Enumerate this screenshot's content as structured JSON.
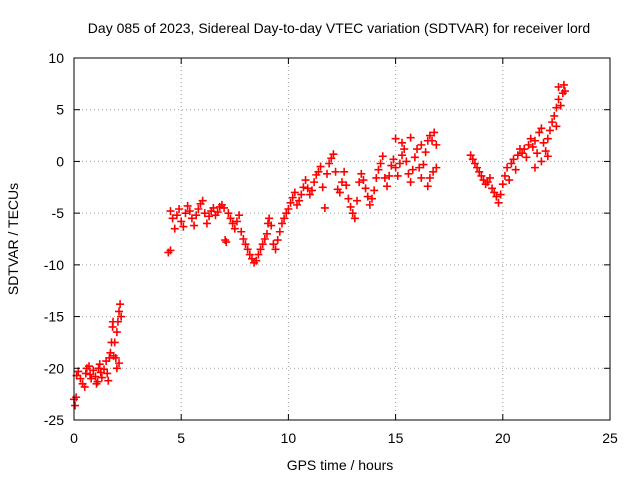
{
  "chart_data": {
    "type": "scatter",
    "title": "Day 085 of 2023, Sidereal Day-to-day VTEC variation (SDTVAR) for receiver lord",
    "xlabel": "GPS time / hours",
    "ylabel": "SDTVAR / TECUs",
    "xlim": [
      0,
      25
    ],
    "ylim": [
      -25,
      10
    ],
    "xticks": [
      0,
      5,
      10,
      15,
      20,
      25
    ],
    "yticks": [
      -25,
      -20,
      -15,
      -10,
      -5,
      0,
      5,
      10
    ],
    "grid": true,
    "marker": "+",
    "color": "#ff0000",
    "points": [
      [
        0.0,
        -23.0
      ],
      [
        0.05,
        -23.6
      ],
      [
        0.1,
        -22.8
      ],
      [
        0.12,
        -20.7
      ],
      [
        0.2,
        -20.3
      ],
      [
        0.3,
        -21.0
      ],
      [
        0.4,
        -21.5
      ],
      [
        0.5,
        -21.8
      ],
      [
        0.55,
        -20.5
      ],
      [
        0.6,
        -20.0
      ],
      [
        0.7,
        -19.8
      ],
      [
        0.75,
        -20.6
      ],
      [
        0.8,
        -21.0
      ],
      [
        0.9,
        -20.2
      ],
      [
        1.0,
        -20.8
      ],
      [
        1.05,
        -21.5
      ],
      [
        1.1,
        -21.3
      ],
      [
        1.15,
        -20.0
      ],
      [
        1.2,
        -19.6
      ],
      [
        1.25,
        -20.4
      ],
      [
        1.3,
        -20.9
      ],
      [
        1.4,
        -20.1
      ],
      [
        1.5,
        -19.3
      ],
      [
        1.55,
        -20.5
      ],
      [
        1.6,
        -21.2
      ],
      [
        1.65,
        -19.0
      ],
      [
        1.7,
        -18.5
      ],
      [
        1.75,
        -17.5
      ],
      [
        1.8,
        -16.0
      ],
      [
        1.82,
        -15.5
      ],
      [
        1.85,
        -18.8
      ],
      [
        1.9,
        -17.5
      ],
      [
        1.95,
        -19.0
      ],
      [
        2.0,
        -16.5
      ],
      [
        2.05,
        -15.5
      ],
      [
        2.1,
        -14.5
      ],
      [
        2.15,
        -13.8
      ],
      [
        2.2,
        -15.0
      ],
      [
        2.1,
        -19.5
      ],
      [
        2.0,
        -20.0
      ],
      [
        4.4,
        -8.8
      ],
      [
        4.5,
        -8.6
      ],
      [
        4.5,
        -4.8
      ],
      [
        4.6,
        -5.5
      ],
      [
        4.7,
        -6.5
      ],
      [
        4.8,
        -5.2
      ],
      [
        4.9,
        -4.6
      ],
      [
        5.0,
        -5.8
      ],
      [
        5.1,
        -6.3
      ],
      [
        5.2,
        -5.0
      ],
      [
        5.3,
        -4.3
      ],
      [
        5.4,
        -4.8
      ],
      [
        5.5,
        -5.5
      ],
      [
        5.6,
        -6.2
      ],
      [
        5.7,
        -5.2
      ],
      [
        5.8,
        -4.6
      ],
      [
        5.9,
        -4.1
      ],
      [
        6.0,
        -3.8
      ],
      [
        6.1,
        -5.0
      ],
      [
        6.2,
        -6.0
      ],
      [
        6.3,
        -5.3
      ],
      [
        6.4,
        -4.8
      ],
      [
        6.5,
        -4.5
      ],
      [
        6.6,
        -5.2
      ],
      [
        6.7,
        -4.9
      ],
      [
        6.8,
        -4.4
      ],
      [
        6.9,
        -4.2
      ],
      [
        7.0,
        -4.5
      ],
      [
        7.05,
        -7.6
      ],
      [
        7.1,
        -7.8
      ],
      [
        7.2,
        -5.0
      ],
      [
        7.3,
        -5.5
      ],
      [
        7.4,
        -6.0
      ],
      [
        7.5,
        -6.5
      ],
      [
        7.6,
        -5.8
      ],
      [
        7.7,
        -5.2
      ],
      [
        7.8,
        -6.8
      ],
      [
        7.9,
        -7.5
      ],
      [
        8.0,
        -8.0
      ],
      [
        8.1,
        -8.5
      ],
      [
        8.2,
        -9.0
      ],
      [
        8.3,
        -9.4
      ],
      [
        8.4,
        -9.8
      ],
      [
        8.5,
        -9.6
      ],
      [
        8.6,
        -9.0
      ],
      [
        8.7,
        -8.5
      ],
      [
        8.8,
        -8.0
      ],
      [
        8.9,
        -7.5
      ],
      [
        9.0,
        -7.0
      ],
      [
        9.05,
        -6.0
      ],
      [
        9.1,
        -5.5
      ],
      [
        9.2,
        -6.2
      ],
      [
        9.3,
        -8.0
      ],
      [
        9.4,
        -8.5
      ],
      [
        9.5,
        -7.6
      ],
      [
        9.6,
        -6.8
      ],
      [
        9.7,
        -6.0
      ],
      [
        9.8,
        -5.5
      ],
      [
        9.9,
        -5.0
      ],
      [
        10.0,
        -4.6
      ],
      [
        10.1,
        -4.0
      ],
      [
        10.2,
        -3.5
      ],
      [
        10.3,
        -3.0
      ],
      [
        10.4,
        -4.2
      ],
      [
        10.5,
        -3.8
      ],
      [
        10.6,
        -3.2
      ],
      [
        10.7,
        -2.5
      ],
      [
        10.8,
        -1.8
      ],
      [
        10.9,
        -2.6
      ],
      [
        11.0,
        -3.2
      ],
      [
        11.1,
        -2.8
      ],
      [
        11.2,
        -2.0
      ],
      [
        11.3,
        -1.3
      ],
      [
        11.4,
        -1.0
      ],
      [
        11.5,
        -0.5
      ],
      [
        11.6,
        -2.5
      ],
      [
        11.7,
        -4.5
      ],
      [
        11.8,
        -1.2
      ],
      [
        11.9,
        -0.2
      ],
      [
        12.0,
        0.3
      ],
      [
        12.1,
        0.7
      ],
      [
        12.2,
        -1.0
      ],
      [
        12.3,
        -2.7
      ],
      [
        12.4,
        -3.0
      ],
      [
        12.5,
        -2.0
      ],
      [
        12.6,
        -1.0
      ],
      [
        12.7,
        -2.3
      ],
      [
        12.8,
        -3.6
      ],
      [
        12.9,
        -4.4
      ],
      [
        13.0,
        -5.0
      ],
      [
        13.1,
        -5.5
      ],
      [
        13.2,
        -3.8
      ],
      [
        13.3,
        -2.0
      ],
      [
        13.4,
        -1.2
      ],
      [
        13.5,
        -1.8
      ],
      [
        13.6,
        -2.6
      ],
      [
        13.7,
        -3.4
      ],
      [
        13.8,
        -4.2
      ],
      [
        13.9,
        -3.6
      ],
      [
        14.0,
        -2.8
      ],
      [
        14.1,
        -1.6
      ],
      [
        14.2,
        -0.8
      ],
      [
        14.3,
        -0.2
      ],
      [
        14.4,
        0.5
      ],
      [
        14.5,
        -1.6
      ],
      [
        14.6,
        -2.4
      ],
      [
        14.7,
        -1.4
      ],
      [
        14.8,
        -0.4
      ],
      [
        14.9,
        0.2
      ],
      [
        15.0,
        -0.6
      ],
      [
        15.1,
        -1.4
      ],
      [
        15.2,
        -0.2
      ],
      [
        15.3,
        0.6
      ],
      [
        15.4,
        1.2
      ],
      [
        15.5,
        0.0
      ],
      [
        15.6,
        -1.2
      ],
      [
        15.7,
        -2.0
      ],
      [
        15.8,
        -0.8
      ],
      [
        15.9,
        0.4
      ],
      [
        16.0,
        1.2
      ],
      [
        16.1,
        -0.6
      ],
      [
        16.2,
        -1.6
      ],
      [
        16.3,
        -0.3
      ],
      [
        16.4,
        0.9
      ],
      [
        16.5,
        2.0
      ],
      [
        16.6,
        2.5
      ],
      [
        16.7,
        2.0
      ],
      [
        16.8,
        2.8
      ],
      [
        16.9,
        1.6
      ],
      [
        16.5,
        -2.4
      ],
      [
        16.6,
        -1.6
      ],
      [
        16.75,
        -1.0
      ],
      [
        16.9,
        -0.6
      ],
      [
        15.0,
        2.2
      ],
      [
        15.3,
        1.8
      ],
      [
        15.7,
        2.3
      ],
      [
        16.2,
        1.6
      ],
      [
        18.5,
        0.6
      ],
      [
        18.6,
        0.2
      ],
      [
        18.7,
        -0.2
      ],
      [
        18.8,
        -0.6
      ],
      [
        18.9,
        -1.0
      ],
      [
        19.0,
        -1.4
      ],
      [
        19.1,
        -1.8
      ],
      [
        19.2,
        -2.2
      ],
      [
        19.3,
        -2.0
      ],
      [
        19.4,
        -1.6
      ],
      [
        19.5,
        -2.6
      ],
      [
        19.6,
        -3.0
      ],
      [
        19.7,
        -3.4
      ],
      [
        19.8,
        -4.0
      ],
      [
        19.9,
        -3.2
      ],
      [
        20.0,
        -2.2
      ],
      [
        20.1,
        -1.4
      ],
      [
        20.2,
        -0.6
      ],
      [
        20.3,
        -1.8
      ],
      [
        20.4,
        -0.2
      ],
      [
        20.5,
        0.2
      ],
      [
        20.6,
        -0.8
      ],
      [
        20.7,
        0.6
      ],
      [
        20.8,
        1.2
      ],
      [
        20.9,
        0.8
      ],
      [
        21.0,
        1.2
      ],
      [
        21.1,
        0.4
      ],
      [
        21.2,
        1.6
      ],
      [
        21.3,
        2.2
      ],
      [
        21.4,
        1.4
      ],
      [
        21.5,
        2.0
      ],
      [
        21.6,
        0.8
      ],
      [
        21.7,
        2.8
      ],
      [
        21.8,
        3.2
      ],
      [
        21.9,
        1.8
      ],
      [
        22.0,
        1.0
      ],
      [
        22.1,
        0.5
      ],
      [
        22.2,
        3.0
      ],
      [
        22.3,
        3.8
      ],
      [
        22.4,
        4.4
      ],
      [
        22.5,
        5.2
      ],
      [
        22.6,
        6.0
      ],
      [
        22.7,
        5.4
      ],
      [
        22.8,
        6.6
      ],
      [
        22.85,
        7.4
      ],
      [
        22.9,
        6.8
      ],
      [
        21.5,
        -0.6
      ],
      [
        21.8,
        0.0
      ],
      [
        22.1,
        2.2
      ],
      [
        22.5,
        3.4
      ],
      [
        22.6,
        7.2
      ]
    ]
  }
}
